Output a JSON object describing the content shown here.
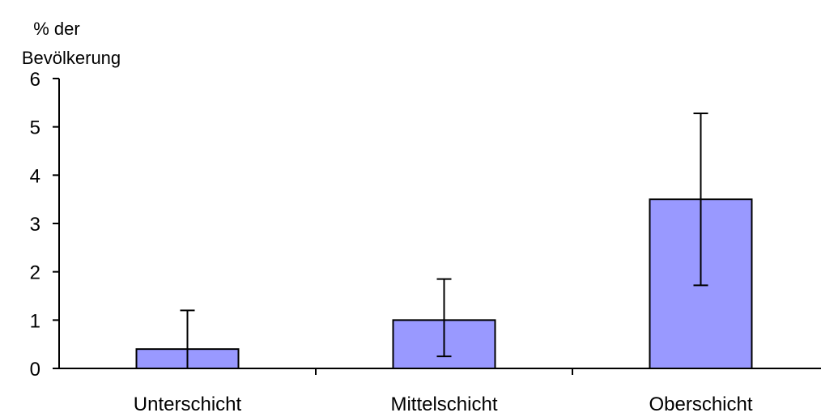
{
  "chart_data": {
    "type": "bar",
    "title": "",
    "xlabel": "",
    "ylabel": "% der Bevölkerung",
    "ylabel_lines": [
      "% der",
      "Bevölkerung"
    ],
    "categories": [
      "Unterschicht",
      "Mittelschicht",
      "Oberschicht"
    ],
    "values": [
      0.4,
      1.0,
      3.5
    ],
    "error_bars": [
      {
        "low": 0.0,
        "high": 1.2
      },
      {
        "low": 0.25,
        "high": 1.85
      },
      {
        "low": 1.72,
        "high": 5.28
      }
    ],
    "ylim": [
      0,
      6
    ],
    "yticks": [
      0,
      1,
      2,
      3,
      4,
      5,
      6
    ],
    "grid": false,
    "legend": "none",
    "colors": {
      "bar_fill": "#9999ff",
      "bar_stroke": "#000000",
      "axis": "#000000",
      "error_bar": "#000000"
    }
  }
}
